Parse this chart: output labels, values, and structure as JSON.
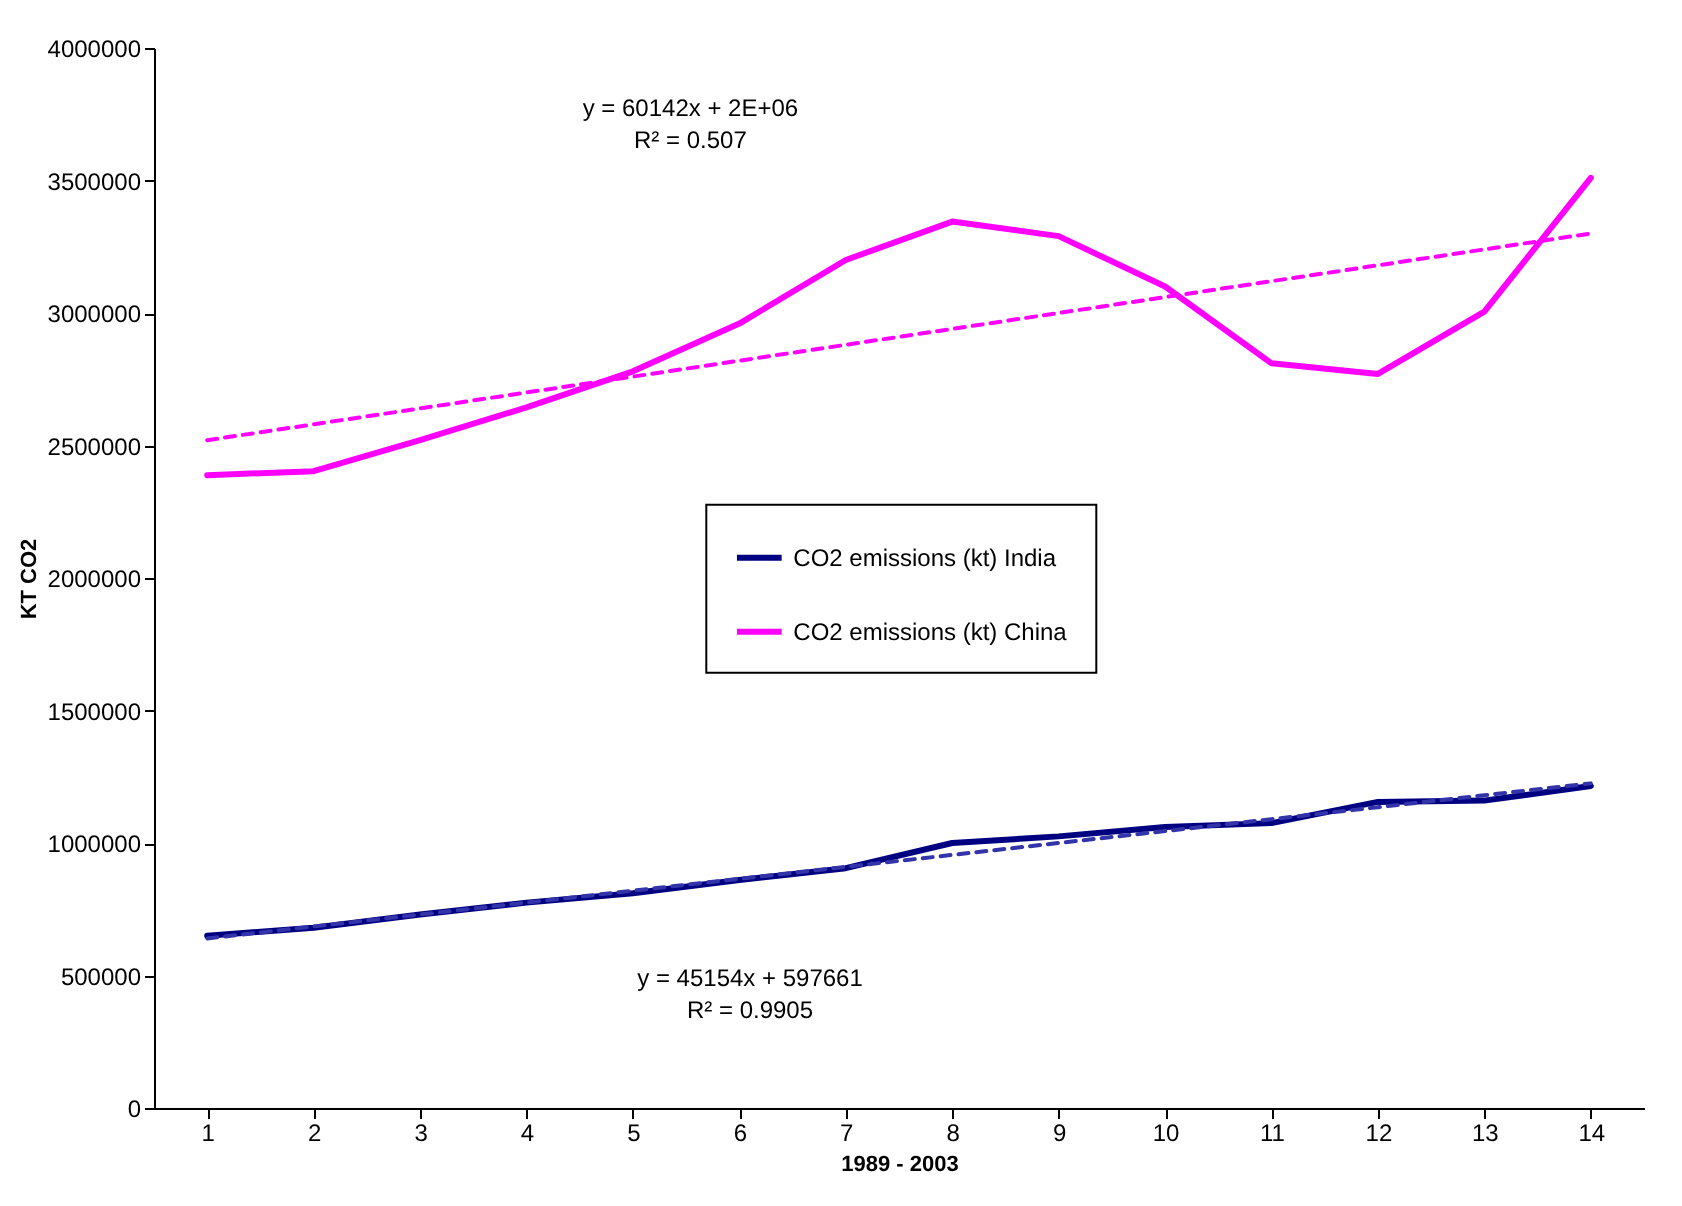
{
  "chart_data": {
    "type": "line",
    "xlabel": "1989 - 2003",
    "ylabel": "KT CO2",
    "x": [
      1,
      2,
      3,
      4,
      5,
      6,
      7,
      8,
      9,
      10,
      11,
      12,
      13,
      14
    ],
    "xlim": [
      0.5,
      14.5
    ],
    "xticks": [
      1,
      2,
      3,
      4,
      5,
      6,
      7,
      8,
      9,
      10,
      11,
      12,
      13,
      14
    ],
    "ylim": [
      0,
      4000000
    ],
    "yticks": [
      0,
      500000,
      1000000,
      1500000,
      2000000,
      2500000,
      3000000,
      3500000,
      4000000
    ],
    "legend": "right",
    "grid": false,
    "marker": "none",
    "series": [
      {
        "name": "CO2 emissions (kt) India",
        "color": "#000080",
        "values": [
          650000,
          680000,
          730000,
          775000,
          810000,
          860000,
          905000,
          1000000,
          1025000,
          1060000,
          1075000,
          1155000,
          1160000,
          1215000
        ]
      },
      {
        "name": "CO2 emissions (kt) China",
        "color": "#ff00ff",
        "values": [
          2388000,
          2403000,
          2520000,
          2644000,
          2780000,
          2960000,
          3200000,
          3345000,
          3290000,
          3100000,
          2810000,
          2770000,
          3005000,
          3510000
        ]
      },
      {
        "type": "line",
        "line_style": "dashed",
        "color": "#ff00ff",
        "values": [
          2520000,
          2580000,
          2640000,
          2700000,
          2760000,
          2820000,
          2880000,
          2940000,
          3000000,
          3060000,
          3120000,
          3180000,
          3240000,
          3300000
        ]
      },
      {
        "type": "line",
        "line_style": "dashed",
        "color": "#3333aa",
        "values": [
          640000,
          685000,
          730000,
          775000,
          820000,
          865000,
          910000,
          955000,
          1000000,
          1045000,
          1090000,
          1135000,
          1180000,
          1225000
        ]
      }
    ],
    "annotations": [
      "y = 60142x + 2E+06",
      "R² = 0.507",
      "y = 45154x + 597661",
      "R² = 0.9905"
    ]
  }
}
